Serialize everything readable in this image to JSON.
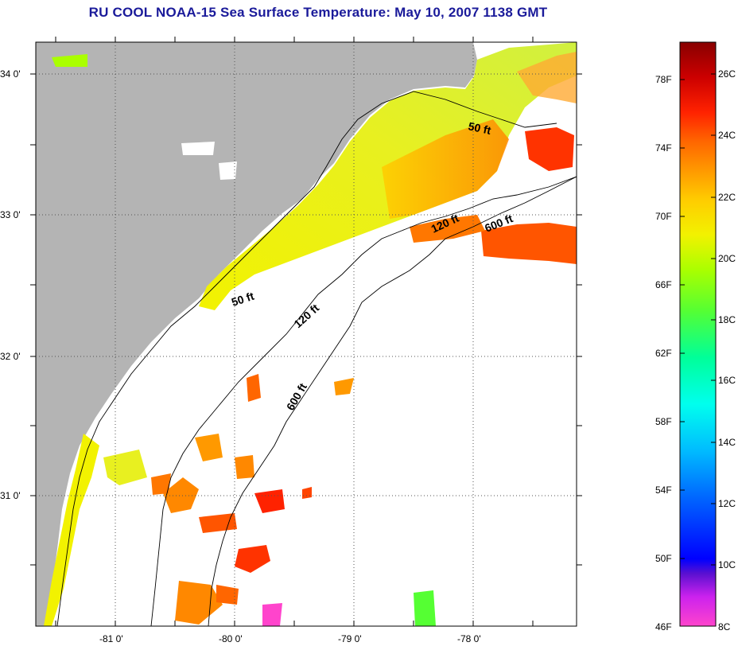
{
  "title": "RU COOL  NOAA-15  Sea Surface Temperature:  May 10, 2007 1138 GMT",
  "map": {
    "lat_labels": [
      "34 0'",
      "33 0'",
      "32 0'",
      "31 0'"
    ],
    "lon_labels": [
      "-81 0'",
      "-80 0'",
      "-79 0'",
      "-78 0'"
    ],
    "land_color": "#b4b4b4",
    "ocean_no_data_color": "#ffffff",
    "isobaths": [
      {
        "label": "50 ft"
      },
      {
        "label": "50 ft"
      },
      {
        "label": "120 ft"
      },
      {
        "label": "120 ft"
      },
      {
        "label": "600 ft"
      },
      {
        "label": "600 ft"
      }
    ]
  },
  "colorbar": {
    "fahrenheit_labels": [
      "78F",
      "74F",
      "70F",
      "66F",
      "62F",
      "58F",
      "54F",
      "50F",
      "46F"
    ],
    "celsius_labels": [
      "26C",
      "24C",
      "22C",
      "20C",
      "18C",
      "16C",
      "14C",
      "12C",
      "10C",
      "8C"
    ],
    "colors": [
      "#ff44cc",
      "#cc22ee",
      "#5a10d0",
      "#0000ff",
      "#0066ff",
      "#00bbff",
      "#00ffee",
      "#00ff99",
      "#55ff33",
      "#aaff00",
      "#f2f200",
      "#ffcc00",
      "#ff9900",
      "#ff6600",
      "#ff2200",
      "#cc0000",
      "#880000"
    ]
  }
}
